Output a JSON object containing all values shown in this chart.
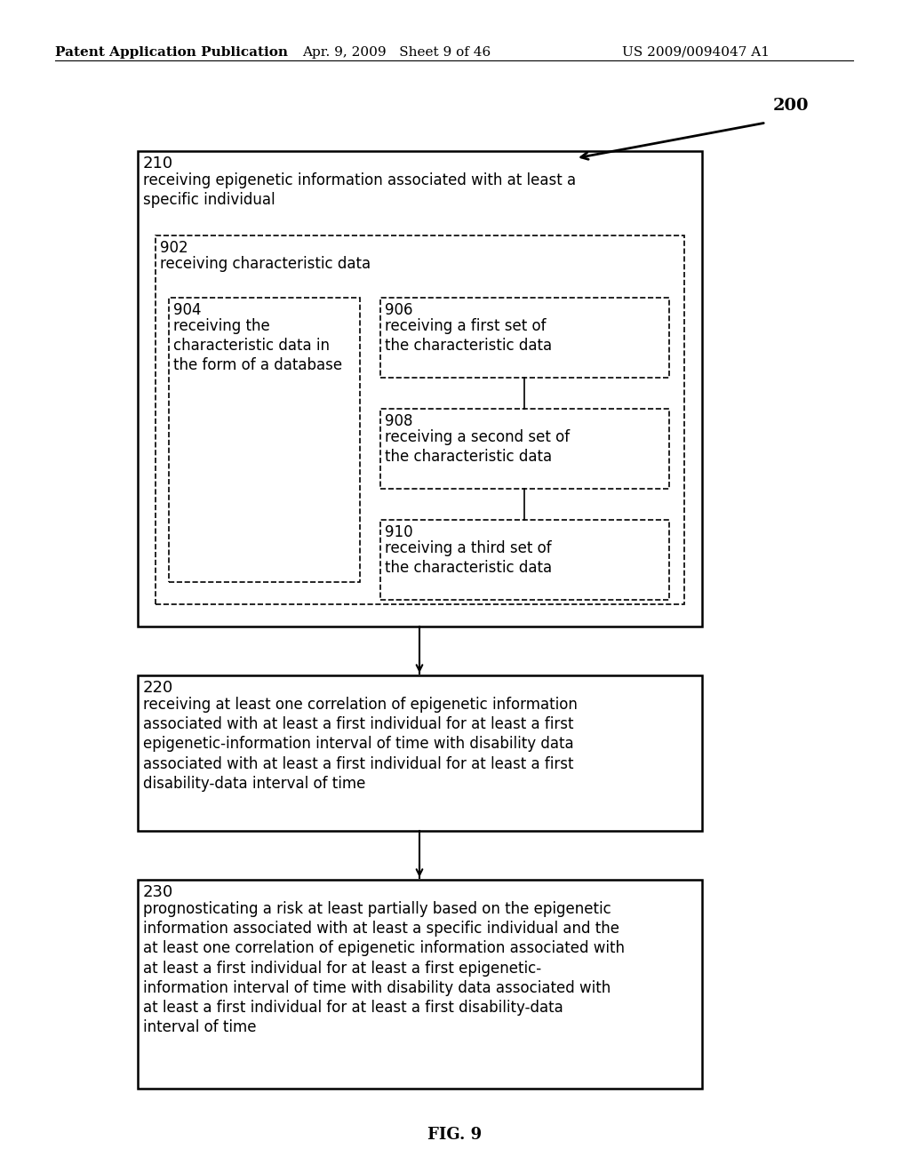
{
  "header_left": "Patent Application Publication",
  "header_mid": "Apr. 9, 2009   Sheet 9 of 46",
  "header_right": "US 2009/0094047 A1",
  "fig_label": "FIG. 9",
  "ref_200": "200",
  "box210_label": "210",
  "box210_text": "receiving epigenetic information associated with at least a\nspecific individual",
  "box902_label": "902",
  "box902_text": "receiving characteristic data",
  "box904_label": "904",
  "box904_text": "receiving the\ncharacteristic data in\nthe form of a database",
  "box906_label": "906",
  "box906_text": "receiving a first set of\nthe characteristic data",
  "box908_label": "908",
  "box908_text": "receiving a second set of\nthe characteristic data",
  "box910_label": "910",
  "box910_text": "receiving a third set of\nthe characteristic data",
  "box220_label": "220",
  "box220_text": "receiving at least one correlation of epigenetic information\nassociated with at least a first individual for at least a first\nepigenetic-information interval of time with disability data\nassociated with at least a first individual for at least a first\ndisability-data interval of time",
  "box230_label": "230",
  "box230_text": "prognosticating a risk at least partially based on the epigenetic\ninformation associated with at least a specific individual and the\nat least one correlation of epigenetic information associated with\nat least a first individual for at least a first epigenetic-\ninformation interval of time with disability data associated with\nat least a first individual for at least a first disability-data\ninterval of time",
  "bg_color": "#ffffff",
  "text_color": "#000000"
}
